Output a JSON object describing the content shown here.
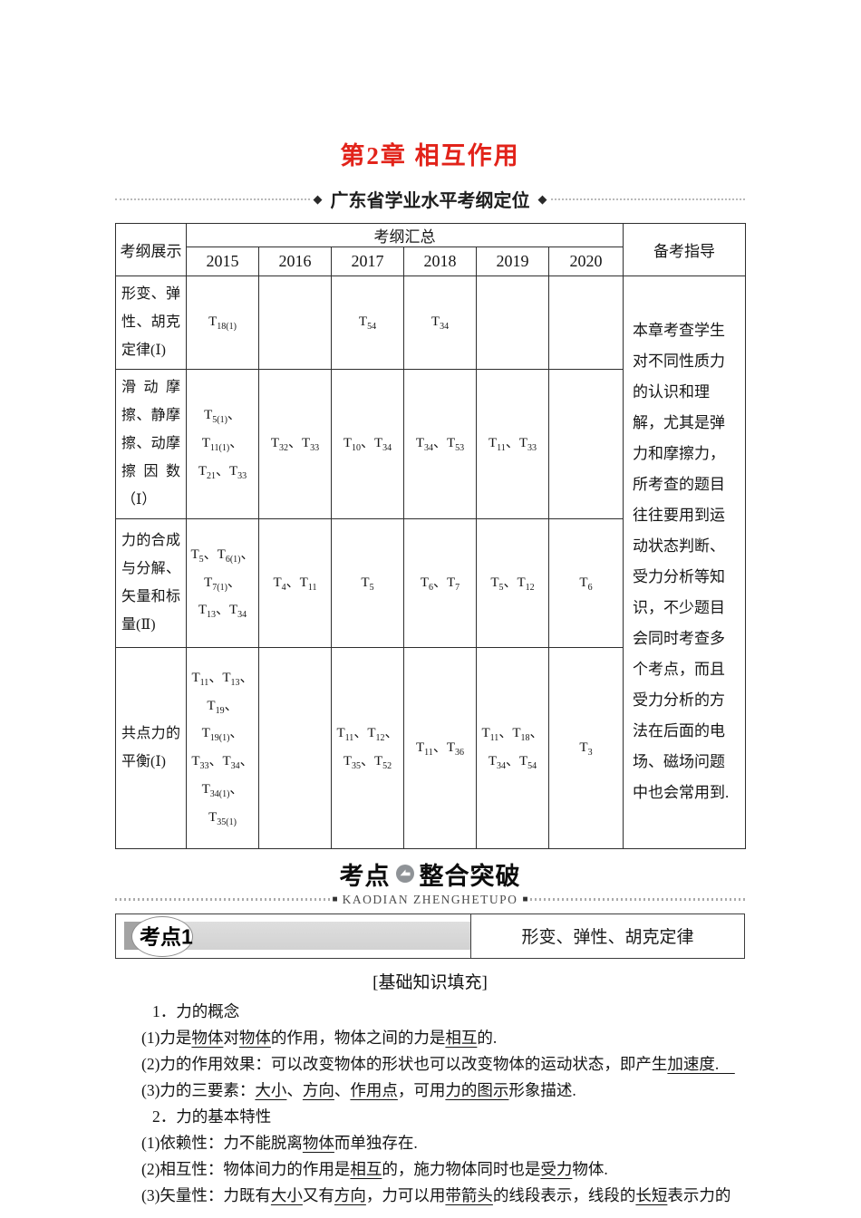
{
  "header": {
    "chapter_title": "第2章 相互作用",
    "banner": {
      "diamond": "◆",
      "text": "广东省学业水平考纲定位"
    }
  },
  "table": {
    "col_headers": {
      "topic": "考纲展示",
      "summary": "考纲汇总",
      "guide": "备考指导"
    },
    "years": [
      "2015",
      "2016",
      "2017",
      "2018",
      "2019",
      "2020"
    ],
    "rows": [
      {
        "topic": "形变、弹性、胡克定律(Ⅰ)",
        "cells": [
          "T{18(1)}",
          "",
          "T{54}",
          "T{34}",
          "",
          ""
        ]
      },
      {
        "topic": "滑动摩擦、静摩擦、动摩擦因数（Ⅰ）",
        "cells": [
          "T{5(1)}、T{11(1)}、T{21}、T{33}",
          "T{32}、T{33}",
          "T{10}、T{34}",
          "T{34}、T{53}",
          "T{11}、T{33}",
          ""
        ]
      },
      {
        "topic": "力的合成与分解、矢量和标量(Ⅱ)",
        "cells": [
          "T{5}、T{6(1)}、T{7(1)}、T{13}、T{34}",
          "T{4}、T{11}",
          "T{5}",
          "T{6}、T{7}",
          "T{5}、T{12}",
          "T{6}"
        ]
      },
      {
        "topic": "共点力的平衡(Ⅰ)",
        "cells": [
          "T{11}、T{13}、T{19}、T{19(1)}、T{33}、T{34}、T{34(1)}、T{35(1)}",
          "",
          "T{11}、T{12}、T{35}、T{52}",
          "T{11}、T{36}",
          "T{11}、T{18}、T{34}、T{54}",
          "T{3}"
        ]
      }
    ],
    "guide_text": "本章考查学生对不同性质力的认识和理解，尤其是弹力和摩擦力，所考查的题目往往要用到运动状态判断、受力分析等知识，不少题目会同时考查多个考点，而且受力分析的方法在后面的电场、磁场问题中也会常用到."
  },
  "section": {
    "kaodian": "考点",
    "zhenghetupo": "整合突破",
    "pinyin": "KAODIAN ZHENGHETUPO",
    "square": "■"
  },
  "topic1": {
    "badge": "考点1",
    "title": "形变、弹性、胡克定律",
    "subheader": "[基础知识填充]"
  },
  "content": {
    "lines": [
      "1．力的概念",
      "(1)力是[[物体]]对[[物体]]的作用，物体之间的力是[[相互]]的.",
      "(2)力的作用效果：可以改变物体的形状也可以改变物体的运动状态，即产生[[加速度.　]]",
      "(3)力的三要素：[[大小]]、[[方向]]、[[作用点]]，可用[[力的图示]]形象描述.",
      "2．力的基本特性",
      "(1)依赖性：力不能脱离[[物体]]而单独存在.",
      "(2)相互性：物体间力的作用是[[相互]]的，施力物体同时也是[[受力]]物体.",
      "(3)矢量性：力既有[[大小]]又有[[方向]]，力可以用[[带箭头]]的线段表示，线段的[[长短]]表示力的"
    ]
  }
}
